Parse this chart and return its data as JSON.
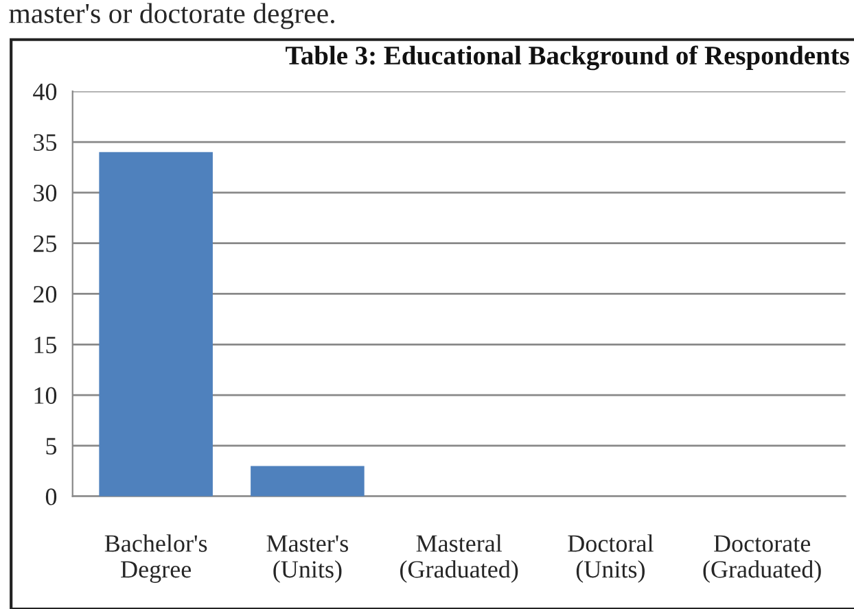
{
  "chart_data": {
    "type": "bar",
    "title": "Table 3: Educational Background of Respondents",
    "annotations": [
      "master's or doctorate degree."
    ],
    "categories": [
      "Bachelor's\nDegree",
      "Master's\n(Units)",
      "Masteral\n(Graduated)",
      "Doctoral\n(Units)",
      "Doctorate\n(Graduated)"
    ],
    "values": [
      34,
      3,
      0,
      0,
      0
    ],
    "color": "#4f81bd",
    "ylim": [
      0,
      40
    ],
    "yticks": [
      0,
      5,
      10,
      15,
      20,
      25,
      30,
      35,
      40
    ],
    "grid": "y",
    "legend": false
  }
}
